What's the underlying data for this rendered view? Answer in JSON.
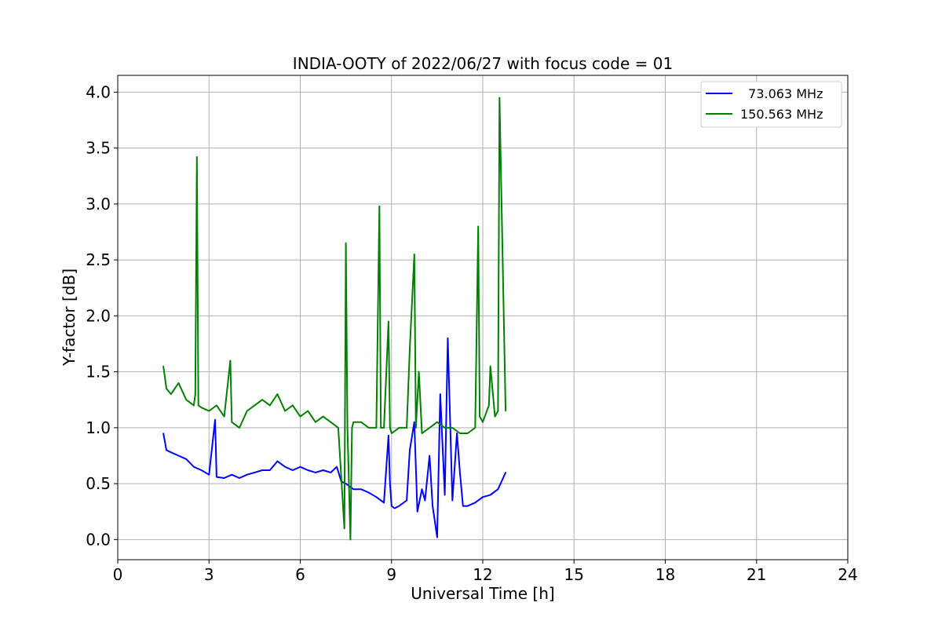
{
  "chart_data": {
    "type": "line",
    "title": "INDIA-OOTY of 2022/06/27 with focus code = 01",
    "xlabel": "Universal Time [h]",
    "ylabel": "Y-factor [dB]",
    "xlim": [
      0,
      24
    ],
    "ylim": [
      -0.18,
      4.15
    ],
    "xticks": [
      0,
      3,
      6,
      9,
      12,
      15,
      18,
      21,
      24
    ],
    "xtick_labels": [
      "0",
      "3",
      "6",
      "9",
      "12",
      "15",
      "18",
      "21",
      "24"
    ],
    "yticks": [
      0.0,
      0.5,
      1.0,
      1.5,
      2.0,
      2.5,
      3.0,
      3.5,
      4.0
    ],
    "ytick_labels": [
      "0.0",
      "0.5",
      "1.0",
      "1.5",
      "2.0",
      "2.5",
      "3.0",
      "3.5",
      "4.0"
    ],
    "grid": true,
    "legend_position": "top-right",
    "series": [
      {
        "name": "  73.063 MHz",
        "color": "#0000ff",
        "x": [
          1.5,
          1.6,
          1.75,
          2.0,
          2.25,
          2.5,
          2.75,
          3.0,
          3.2,
          3.25,
          3.5,
          3.75,
          4.0,
          4.25,
          4.5,
          4.75,
          5.0,
          5.25,
          5.5,
          5.75,
          6.0,
          6.25,
          6.5,
          6.75,
          7.0,
          7.2,
          7.35,
          7.5,
          7.75,
          8.0,
          8.25,
          8.5,
          8.75,
          8.9,
          8.95,
          9.0,
          9.1,
          9.25,
          9.5,
          9.6,
          9.75,
          9.85,
          10.0,
          10.1,
          10.25,
          10.35,
          10.5,
          10.6,
          10.75,
          10.85,
          11.0,
          11.15,
          11.25,
          11.35,
          11.5,
          11.75,
          12.0,
          12.25,
          12.5,
          12.75
        ],
        "y": [
          0.95,
          0.8,
          0.78,
          0.75,
          0.72,
          0.65,
          0.62,
          0.58,
          1.07,
          0.56,
          0.55,
          0.58,
          0.55,
          0.58,
          0.6,
          0.62,
          0.62,
          0.7,
          0.65,
          0.62,
          0.65,
          0.62,
          0.6,
          0.62,
          0.6,
          0.65,
          0.52,
          0.5,
          0.45,
          0.45,
          0.42,
          0.38,
          0.33,
          0.93,
          0.5,
          0.3,
          0.28,
          0.3,
          0.35,
          0.8,
          1.05,
          0.25,
          0.45,
          0.35,
          0.75,
          0.3,
          0.02,
          1.3,
          0.4,
          1.8,
          0.35,
          0.95,
          0.6,
          0.3,
          0.3,
          0.33,
          0.38,
          0.4,
          0.45,
          0.6
        ]
      },
      {
        "name": "150.563 MHz",
        "color": "#008000",
        "x": [
          1.5,
          1.6,
          1.75,
          2.0,
          2.25,
          2.5,
          2.55,
          2.6,
          2.65,
          2.75,
          3.0,
          3.25,
          3.5,
          3.7,
          3.75,
          4.0,
          4.25,
          4.5,
          4.75,
          5.0,
          5.25,
          5.5,
          5.75,
          6.0,
          6.25,
          6.5,
          6.75,
          7.0,
          7.25,
          7.45,
          7.5,
          7.55,
          7.65,
          7.7,
          7.75,
          8.0,
          8.25,
          8.5,
          8.6,
          8.65,
          8.75,
          8.9,
          8.95,
          9.0,
          9.25,
          9.5,
          9.6,
          9.75,
          9.8,
          9.9,
          10.0,
          10.25,
          10.5,
          10.75,
          11.0,
          11.25,
          11.5,
          11.75,
          11.85,
          11.9,
          12.0,
          12.2,
          12.25,
          12.4,
          12.5,
          12.55,
          12.75
        ],
        "y": [
          1.55,
          1.35,
          1.3,
          1.4,
          1.25,
          1.2,
          1.3,
          3.42,
          1.2,
          1.18,
          1.15,
          1.2,
          1.1,
          1.6,
          1.05,
          1.0,
          1.15,
          1.2,
          1.25,
          1.2,
          1.3,
          1.15,
          1.2,
          1.1,
          1.15,
          1.05,
          1.1,
          1.05,
          1.0,
          0.1,
          2.65,
          1.0,
          0.0,
          1.0,
          1.05,
          1.05,
          1.0,
          1.0,
          2.98,
          1.0,
          1.0,
          1.95,
          1.0,
          0.95,
          1.0,
          1.0,
          1.7,
          2.55,
          1.0,
          1.5,
          0.95,
          1.0,
          1.05,
          1.0,
          1.0,
          0.95,
          0.95,
          1.0,
          2.8,
          1.1,
          1.05,
          1.2,
          1.55,
          1.1,
          1.15,
          3.95,
          1.15
        ]
      }
    ]
  }
}
